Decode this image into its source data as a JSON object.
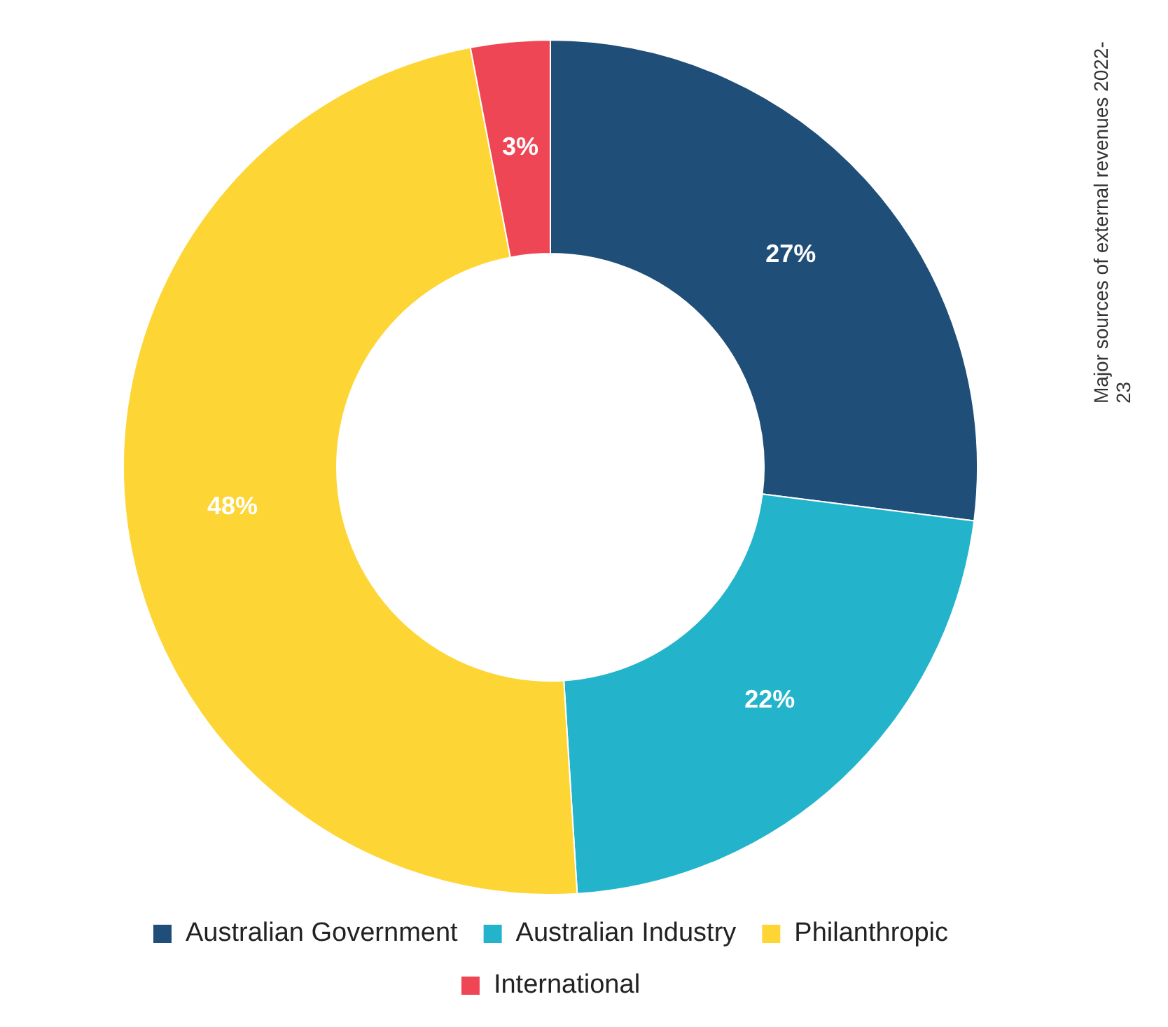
{
  "chart_data": {
    "type": "donut",
    "title": "Major sources of external revenues 2022-23",
    "categories": [
      "Australian Government",
      "Australian Industry",
      "Philanthropic",
      "International"
    ],
    "values": [
      27,
      22,
      48,
      3
    ],
    "colors": [
      "#1f4e78",
      "#23b4cb",
      "#fdd535",
      "#ef4655"
    ],
    "value_labels": [
      "27%",
      "22%",
      "48%",
      "3%"
    ],
    "legend": "bottom"
  }
}
